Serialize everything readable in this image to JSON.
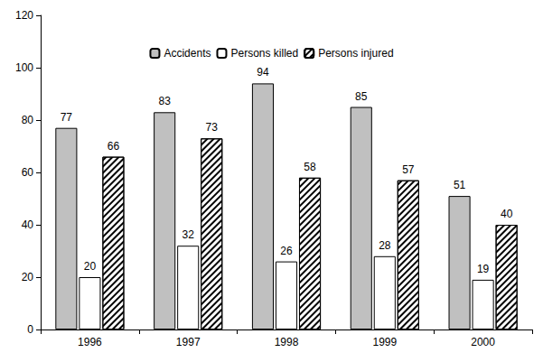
{
  "chart_data": {
    "type": "bar",
    "categories": [
      "1996",
      "1997",
      "1998",
      "1999",
      "2000"
    ],
    "series": [
      {
        "name": "Accidents",
        "color": "#c0c0c0",
        "values": [
          77,
          83,
          94,
          85,
          51
        ]
      },
      {
        "name": "Persons killed",
        "color": "#ffffff",
        "values": [
          20,
          32,
          26,
          28,
          19
        ]
      },
      {
        "name": "Persons injured",
        "color": "#ffffff",
        "values": [
          66,
          73,
          58,
          57,
          40
        ]
      }
    ],
    "ylim": [
      0,
      120
    ],
    "yticks": [
      0,
      20,
      40,
      60,
      80,
      100,
      120
    ],
    "grid": false,
    "legend": "top",
    "data_labels": true
  }
}
